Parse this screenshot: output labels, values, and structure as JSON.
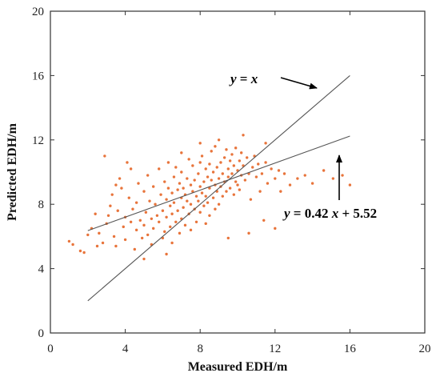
{
  "chart_data": {
    "type": "scatter",
    "title": "",
    "xlabel": "Measured EDH/m",
    "ylabel": "Predicted EDH/m",
    "xlim": [
      0,
      20
    ],
    "ylim": [
      0,
      20
    ],
    "x_ticks": [
      "0",
      "4",
      "8",
      "12",
      "16",
      "20"
    ],
    "y_ticks": [
      "0",
      "4",
      "8",
      "12",
      "16",
      "20"
    ],
    "grid": false,
    "point_color": "#E8743B",
    "line_color": "#555555",
    "points": [
      [
        1.0,
        5.7
      ],
      [
        1.2,
        5.5
      ],
      [
        1.6,
        5.1
      ],
      [
        1.8,
        5.0
      ],
      [
        2.0,
        6.1
      ],
      [
        2.2,
        6.5
      ],
      [
        2.4,
        7.4
      ],
      [
        2.6,
        6.2
      ],
      [
        2.8,
        5.6
      ],
      [
        2.9,
        11.0
      ],
      [
        3.0,
        6.8
      ],
      [
        3.1,
        7.3
      ],
      [
        3.2,
        7.9
      ],
      [
        3.3,
        8.6
      ],
      [
        3.4,
        6.0
      ],
      [
        3.5,
        5.4
      ],
      [
        3.6,
        7.6
      ],
      [
        3.7,
        9.6
      ],
      [
        3.8,
        9.0
      ],
      [
        3.9,
        6.6
      ],
      [
        4.0,
        7.2
      ],
      [
        4.0,
        5.8
      ],
      [
        4.1,
        10.6
      ],
      [
        4.2,
        8.4
      ],
      [
        4.3,
        6.9
      ],
      [
        4.4,
        7.7
      ],
      [
        4.5,
        5.2
      ],
      [
        4.6,
        8.1
      ],
      [
        4.6,
        6.4
      ],
      [
        4.7,
        9.3
      ],
      [
        4.8,
        7.0
      ],
      [
        4.9,
        5.9
      ],
      [
        5.0,
        8.8
      ],
      [
        5.0,
        6.7
      ],
      [
        5.1,
        7.5
      ],
      [
        5.2,
        9.8
      ],
      [
        5.2,
        6.1
      ],
      [
        5.3,
        8.2
      ],
      [
        5.4,
        7.1
      ],
      [
        5.4,
        5.5
      ],
      [
        5.5,
        9.1
      ],
      [
        5.5,
        6.5
      ],
      [
        5.6,
        8.0
      ],
      [
        5.7,
        7.3
      ],
      [
        5.8,
        10.2
      ],
      [
        5.8,
        6.9
      ],
      [
        5.9,
        8.6
      ],
      [
        6.0,
        7.6
      ],
      [
        6.0,
        5.9
      ],
      [
        6.1,
        9.4
      ],
      [
        6.1,
        6.3
      ],
      [
        6.2,
        8.3
      ],
      [
        6.2,
        7.2
      ],
      [
        6.3,
        10.6
      ],
      [
        6.3,
        9.0
      ],
      [
        6.4,
        7.9
      ],
      [
        6.4,
        6.6
      ],
      [
        6.5,
        8.7
      ],
      [
        6.5,
        7.4
      ],
      [
        6.5,
        5.6
      ],
      [
        6.6,
        9.7
      ],
      [
        6.6,
        8.1
      ],
      [
        6.7,
        6.9
      ],
      [
        6.7,
        10.3
      ],
      [
        6.8,
        8.9
      ],
      [
        6.8,
        7.6
      ],
      [
        6.9,
        9.3
      ],
      [
        6.9,
        6.2
      ],
      [
        7.0,
        8.4
      ],
      [
        7.0,
        7.1
      ],
      [
        7.0,
        10.0
      ],
      [
        7.1,
        9.0
      ],
      [
        7.1,
        7.8
      ],
      [
        7.2,
        8.6
      ],
      [
        7.2,
        6.7
      ],
      [
        7.3,
        9.6
      ],
      [
        7.3,
        8.2
      ],
      [
        7.4,
        10.8
      ],
      [
        7.4,
        7.4
      ],
      [
        7.5,
        9.2
      ],
      [
        7.5,
        8.0
      ],
      [
        7.5,
        6.4
      ],
      [
        7.6,
        8.8
      ],
      [
        7.6,
        10.4
      ],
      [
        7.7,
        7.7
      ],
      [
        7.7,
        9.5
      ],
      [
        7.8,
        8.5
      ],
      [
        7.8,
        6.9
      ],
      [
        7.9,
        9.9
      ],
      [
        7.9,
        8.2
      ],
      [
        8.0,
        9.1
      ],
      [
        8.0,
        7.5
      ],
      [
        8.0,
        10.6
      ],
      [
        8.1,
        8.7
      ],
      [
        8.1,
        11.0
      ],
      [
        8.2,
        9.4
      ],
      [
        8.2,
        7.9
      ],
      [
        8.3,
        10.2
      ],
      [
        8.3,
        8.5
      ],
      [
        8.3,
        6.8
      ],
      [
        8.4,
        9.7
      ],
      [
        8.4,
        8.1
      ],
      [
        8.5,
        10.5
      ],
      [
        8.5,
        9.0
      ],
      [
        8.5,
        7.3
      ],
      [
        8.6,
        11.3
      ],
      [
        8.6,
        9.5
      ],
      [
        8.7,
        8.4
      ],
      [
        8.7,
        10.0
      ],
      [
        8.8,
        9.2
      ],
      [
        8.8,
        7.7
      ],
      [
        8.8,
        11.6
      ],
      [
        8.9,
        10.3
      ],
      [
        8.9,
        8.8
      ],
      [
        9.0,
        9.6
      ],
      [
        9.0,
        12.0
      ],
      [
        9.0,
        8.0
      ],
      [
        9.1,
        10.6
      ],
      [
        9.1,
        9.1
      ],
      [
        9.2,
        9.9
      ],
      [
        9.2,
        8.5
      ],
      [
        9.3,
        10.9
      ],
      [
        9.3,
        9.4
      ],
      [
        9.4,
        11.4
      ],
      [
        9.4,
        8.8
      ],
      [
        9.5,
        10.2
      ],
      [
        9.5,
        9.7
      ],
      [
        9.6,
        10.7
      ],
      [
        9.6,
        9.0
      ],
      [
        9.7,
        11.1
      ],
      [
        9.7,
        9.9
      ],
      [
        9.8,
        10.4
      ],
      [
        9.8,
        8.6
      ],
      [
        9.9,
        9.4
      ],
      [
        9.9,
        11.5
      ],
      [
        10.0,
        10.1
      ],
      [
        10.0,
        9.2
      ],
      [
        10.1,
        10.7
      ],
      [
        10.1,
        8.9
      ],
      [
        10.2,
        9.8
      ],
      [
        10.2,
        11.2
      ],
      [
        10.3,
        10.4
      ],
      [
        10.4,
        9.5
      ],
      [
        10.5,
        10.9
      ],
      [
        10.6,
        9.9
      ],
      [
        10.7,
        8.3
      ],
      [
        10.8,
        10.3
      ],
      [
        10.9,
        11.0
      ],
      [
        11.0,
        9.7
      ],
      [
        11.1,
        10.5
      ],
      [
        11.2,
        8.8
      ],
      [
        11.3,
        9.9
      ],
      [
        11.5,
        10.6
      ],
      [
        11.6,
        9.3
      ],
      [
        11.8,
        10.2
      ],
      [
        12.0,
        9.6
      ],
      [
        12.2,
        10.1
      ],
      [
        12.3,
        8.8
      ],
      [
        12.5,
        9.9
      ],
      [
        12.8,
        9.2
      ],
      [
        13.2,
        9.6
      ],
      [
        13.6,
        9.8
      ],
      [
        14.0,
        9.3
      ],
      [
        14.6,
        10.1
      ],
      [
        15.1,
        9.6
      ],
      [
        15.6,
        9.8
      ],
      [
        16.0,
        9.2
      ],
      [
        11.4,
        7.0
      ],
      [
        12.0,
        6.5
      ],
      [
        10.6,
        6.2
      ],
      [
        6.2,
        4.9
      ],
      [
        5.0,
        4.6
      ],
      [
        9.5,
        5.9
      ],
      [
        4.3,
        10.2
      ],
      [
        3.5,
        9.2
      ],
      [
        7.0,
        11.2
      ],
      [
        8.0,
        11.8
      ],
      [
        11.5,
        11.8
      ],
      [
        10.3,
        12.3
      ],
      [
        2.5,
        5.4
      ]
    ],
    "lines": [
      {
        "name": "y = x",
        "x": [
          2,
          16
        ],
        "y": [
          2,
          16
        ]
      },
      {
        "name": "y = 0.42 x + 5.52",
        "x": [
          2,
          16
        ],
        "y": [
          6.36,
          12.24
        ]
      }
    ],
    "annotations": [
      {
        "parts": [
          [
            "y",
            true
          ],
          [
            " = ",
            false
          ],
          [
            "x",
            true
          ]
        ]
      },
      {
        "parts": [
          [
            "y",
            true
          ],
          [
            " = 0.42 ",
            false
          ],
          [
            "x",
            true
          ],
          [
            " + 5.52",
            false
          ]
        ]
      }
    ]
  }
}
